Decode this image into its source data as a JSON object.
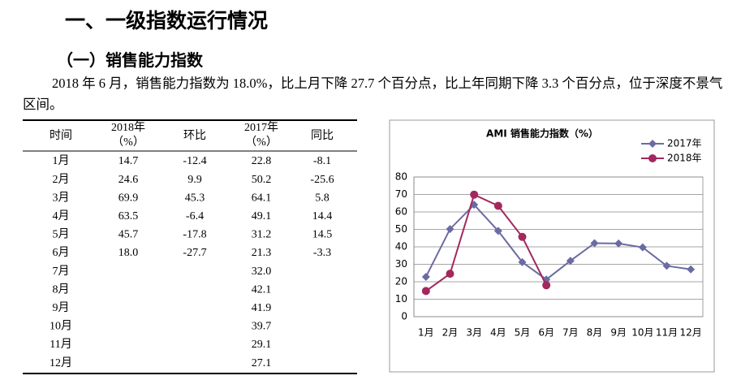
{
  "heading1": "一、一级指数运行情况",
  "heading2": "（一）销售能力指数",
  "paragraph": "2018 年 6 月，销售能力指数为 18.0%，比上月下降 27.7 个百分点，比上年同期下降 3.3 个百分点，位于深度不景气区间。",
  "table": {
    "headers": [
      [
        "时间"
      ],
      [
        "2018年",
        "（%）"
      ],
      [
        "环比"
      ],
      [
        "2017年",
        "（%）"
      ],
      [
        "同比"
      ]
    ],
    "rows": [
      [
        "1月",
        "14.7",
        "-12.4",
        "22.8",
        "-8.1"
      ],
      [
        "2月",
        "24.6",
        "9.9",
        "50.2",
        "-25.6"
      ],
      [
        "3月",
        "69.9",
        "45.3",
        "64.1",
        "5.8"
      ],
      [
        "4月",
        "63.5",
        "-6.4",
        "49.1",
        "14.4"
      ],
      [
        "5月",
        "45.7",
        "-17.8",
        "31.2",
        "14.5"
      ],
      [
        "6月",
        "18.0",
        "-27.7",
        "21.3",
        "-3.3"
      ],
      [
        "7月",
        null,
        null,
        "32.0",
        null
      ],
      [
        "8月",
        null,
        null,
        "42.1",
        null
      ],
      [
        "9月",
        null,
        null,
        "41.9",
        null
      ],
      [
        "10月",
        null,
        null,
        "39.7",
        null
      ],
      [
        "11月",
        null,
        null,
        "29.1",
        null
      ],
      [
        "12月",
        null,
        null,
        "27.1",
        null
      ]
    ]
  },
  "chart_data": {
    "type": "line",
    "title": "AMI 销售能力指数（%）",
    "categories": [
      "1月",
      "2月",
      "3月",
      "4月",
      "5月",
      "6月",
      "7月",
      "8月",
      "9月",
      "10月",
      "11月",
      "12月"
    ],
    "series": [
      {
        "name": "2017年",
        "color": "#6b6ba3",
        "marker": "diamond",
        "values": [
          22.8,
          50.2,
          64.1,
          49.1,
          31.2,
          21.3,
          32.0,
          42.1,
          41.9,
          39.7,
          29.1,
          27.1
        ]
      },
      {
        "name": "2018年",
        "color": "#a3285e",
        "marker": "circle",
        "values": [
          14.7,
          24.6,
          69.9,
          63.5,
          45.7,
          18.0,
          null,
          null,
          null,
          null,
          null,
          null
        ]
      }
    ],
    "ylim": [
      0,
      80
    ],
    "yticks": [
      0,
      10,
      20,
      30,
      40,
      50,
      60,
      70,
      80
    ],
    "grid": true,
    "legend": "top-right"
  }
}
